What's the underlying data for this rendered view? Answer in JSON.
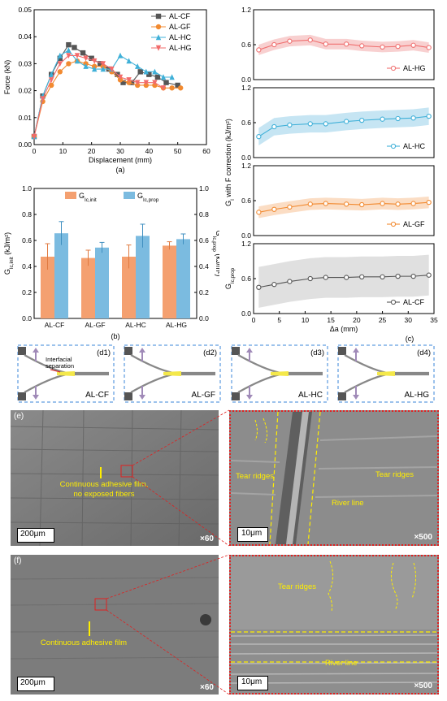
{
  "chart_data": [
    {
      "id": "a",
      "type": "line",
      "panel_label": "(a)",
      "xlabel": "Displacement (mm)",
      "ylabel": "Force (kN)",
      "xlim": [
        0,
        60
      ],
      "ylim": [
        0,
        0.05
      ],
      "x_ticks": [
        "0",
        "10",
        "20",
        "30",
        "40",
        "50",
        "60"
      ],
      "y_ticks": [
        "0.00",
        "0.01",
        "0.02",
        "0.03",
        "0.04",
        "0.05"
      ],
      "legend": "top-right",
      "series": [
        {
          "name": "AL-CF",
          "color": "#555555",
          "marker": "square",
          "x": [
            0,
            3,
            6,
            9,
            12,
            14,
            17,
            20,
            23,
            26,
            29,
            31,
            34,
            37,
            40,
            43,
            46,
            50
          ],
          "y": [
            0.003,
            0.018,
            0.026,
            0.032,
            0.037,
            0.036,
            0.034,
            0.032,
            0.03,
            0.028,
            0.026,
            0.023,
            0.023,
            0.027,
            0.026,
            0.025,
            0.023,
            0.022
          ]
        },
        {
          "name": "AL-GF",
          "color": "#f28a30",
          "marker": "circle",
          "x": [
            0,
            3,
            6,
            9,
            12,
            15,
            18,
            21,
            24,
            27,
            30,
            33,
            36,
            39,
            42,
            45,
            48,
            51
          ],
          "y": [
            0.003,
            0.016,
            0.022,
            0.027,
            0.03,
            0.031,
            0.03,
            0.029,
            0.029,
            0.027,
            0.024,
            0.023,
            0.022,
            0.022,
            0.022,
            0.021,
            0.021,
            0.021
          ]
        },
        {
          "name": "AL-HC",
          "color": "#3fb0d8",
          "marker": "triangle-up",
          "x": [
            0,
            3,
            6,
            9,
            12,
            15,
            18,
            21,
            24,
            27,
            30,
            33,
            36,
            39,
            42,
            45,
            48
          ],
          "y": [
            0.003,
            0.018,
            0.026,
            0.033,
            0.035,
            0.031,
            0.029,
            0.028,
            0.028,
            0.028,
            0.033,
            0.031,
            0.029,
            0.027,
            0.027,
            0.025,
            0.025
          ]
        },
        {
          "name": "AL-HG",
          "color": "#f26b6b",
          "marker": "triangle-down",
          "x": [
            0,
            3,
            6,
            9,
            12,
            15,
            18,
            21,
            24,
            27,
            30,
            33,
            36,
            39,
            42,
            45
          ],
          "y": [
            0.003,
            0.017,
            0.024,
            0.03,
            0.033,
            0.033,
            0.032,
            0.031,
            0.03,
            0.028,
            0.025,
            0.024,
            0.023,
            0.023,
            0.023,
            0.021
          ]
        }
      ]
    },
    {
      "id": "b",
      "type": "bar",
      "panel_label": "(b)",
      "categories": [
        "AL-CF",
        "AL-GF",
        "AL-HC",
        "AL-HG"
      ],
      "ylabel_left_base": "G",
      "ylabel_left_sub": "Ic,init",
      "ylabel_left_unit": " (kJ/m²)",
      "ylabel_right_base": "G",
      "ylabel_right_sub": "Ic,prop",
      "ylabel_right_unit": " (kJ/m²)",
      "ylim": [
        0,
        1.0
      ],
      "y_ticks": [
        "0.0",
        "0.2",
        "0.4",
        "0.6",
        "0.8",
        "1.0"
      ],
      "legend": "top-center",
      "series": [
        {
          "name_base": "G",
          "name_sub": "Ic,init",
          "color": "#f4a070",
          "values": [
            0.475,
            0.465,
            0.475,
            0.56
          ],
          "errors": [
            0.1,
            0.06,
            0.09,
            0.03
          ]
        },
        {
          "name_base": "G",
          "name_sub": "Ic,prop",
          "color": "#7bbbe0",
          "values": [
            0.655,
            0.545,
            0.635,
            0.61
          ],
          "errors": [
            0.09,
            0.04,
            0.09,
            0.04
          ]
        }
      ]
    },
    {
      "id": "c",
      "type": "line",
      "panel_label": "(c)",
      "xlabel": "Δa (mm)",
      "ylabel_mid_base": "G",
      "ylabel_mid_sub": "I",
      "ylabel_mid_rest": " with F correction (kJ/m²)",
      "ylabel_bottom_base": "G",
      "ylabel_bottom_sub": "Ic,prop",
      "x_ticks": [
        "0",
        "5",
        "10",
        "15",
        "20",
        "25",
        "30",
        "35"
      ],
      "xlim": [
        0,
        35
      ],
      "ylim": [
        0,
        1.2
      ],
      "y_ticks": [
        "0.0",
        "0.6",
        "1.2"
      ],
      "subplots": [
        {
          "name": "AL-HG",
          "color": "#f07070",
          "band": "#f5c0c0",
          "x": [
            1,
            4,
            7,
            11,
            14,
            18,
            21,
            25,
            28,
            31,
            34
          ],
          "y": [
            0.51,
            0.6,
            0.66,
            0.68,
            0.61,
            0.61,
            0.58,
            0.56,
            0.57,
            0.59,
            0.55
          ],
          "spread": 0.09
        },
        {
          "name": "AL-HC",
          "color": "#3fb0d8",
          "band": "#b3dcef",
          "x": [
            1,
            4,
            7,
            11,
            14,
            18,
            21,
            25,
            28,
            31,
            34
          ],
          "y": [
            0.36,
            0.53,
            0.56,
            0.58,
            0.58,
            0.62,
            0.64,
            0.66,
            0.67,
            0.68,
            0.71
          ],
          "spread": 0.15
        },
        {
          "name": "AL-GF",
          "color": "#f28a30",
          "band": "#f9d2b0",
          "x": [
            1,
            4,
            7,
            11,
            14,
            18,
            21,
            25,
            28,
            31,
            34
          ],
          "y": [
            0.4,
            0.45,
            0.49,
            0.54,
            0.55,
            0.54,
            0.53,
            0.55,
            0.54,
            0.55,
            0.57
          ],
          "spread": 0.1
        },
        {
          "name": "AL-CF",
          "color": "#555555",
          "band": "#d6d6d6",
          "x": [
            1,
            4,
            7,
            11,
            14,
            18,
            21,
            25,
            28,
            31,
            34
          ],
          "y": [
            0.45,
            0.5,
            0.55,
            0.6,
            0.62,
            0.62,
            0.63,
            0.63,
            0.64,
            0.64,
            0.66
          ],
          "spread": 0.35
        }
      ]
    }
  ],
  "schematics": [
    {
      "tag": "(d1)",
      "name": "AL-CF",
      "annotation": "Interfacial separation"
    },
    {
      "tag": "(d2)",
      "name": "AL-GF"
    },
    {
      "tag": "(d3)",
      "name": "AL-HC"
    },
    {
      "tag": "(d4)",
      "name": "AL-HG"
    }
  ],
  "micrographs": {
    "e_left": {
      "label": "(e)",
      "caption": "Continuous adhesive film, no exposed fibers",
      "scale": "200μm",
      "mag": "×60"
    },
    "e_right": {
      "ann1": "Tear ridges",
      "ann2": "Tear ridges",
      "ann3": "River line",
      "scale": "10μm",
      "mag": "×500"
    },
    "f_left": {
      "label": "(f)",
      "caption": "Continuous adhesive film",
      "scale": "200μm",
      "mag": "×60"
    },
    "f_right": {
      "ann1": "Tear ridges",
      "ann2": "River line",
      "scale": "10μm",
      "mag": "×500"
    }
  },
  "colors": {
    "sem_bg": "#7a7a7a",
    "annotation": "#ffee00",
    "zoom_box": "#e02020",
    "schematic_border": "#3a86d8"
  }
}
